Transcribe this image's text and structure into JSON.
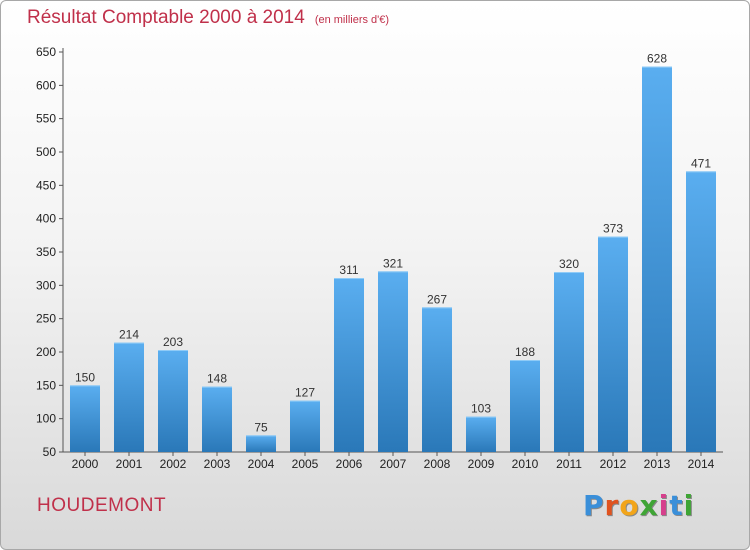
{
  "header": {
    "title": "Résultat Comptable 2000 à 2014",
    "subtitle": "(en milliers d'€)"
  },
  "footer": {
    "commune": "HOUDEMONT",
    "logo_letters": [
      "P",
      "r",
      "o",
      "x",
      "i",
      "t",
      "i"
    ],
    "logo_colors": [
      "#3a8fd9",
      "#e0531f",
      "#f2a51a",
      "#3fa535",
      "#d63f8c",
      "#3a8fd9",
      "#3fa535"
    ]
  },
  "chart_data": {
    "type": "bar",
    "title": "Résultat Comptable 2000 à 2014",
    "categories": [
      "2000",
      "2001",
      "2002",
      "2003",
      "2004",
      "2005",
      "2006",
      "2007",
      "2008",
      "2009",
      "2010",
      "2011",
      "2012",
      "2013",
      "2014"
    ],
    "values": [
      150,
      214,
      203,
      148,
      75,
      127,
      311,
      321,
      267,
      103,
      188,
      320,
      373,
      628,
      471
    ],
    "ylim": [
      50,
      650
    ],
    "yticks": [
      50,
      100,
      150,
      200,
      250,
      300,
      350,
      400,
      450,
      500,
      550,
      600,
      650
    ],
    "grid": false,
    "bar_color_top": "#5aaef0",
    "bar_color_bottom": "#2a78b8"
  }
}
